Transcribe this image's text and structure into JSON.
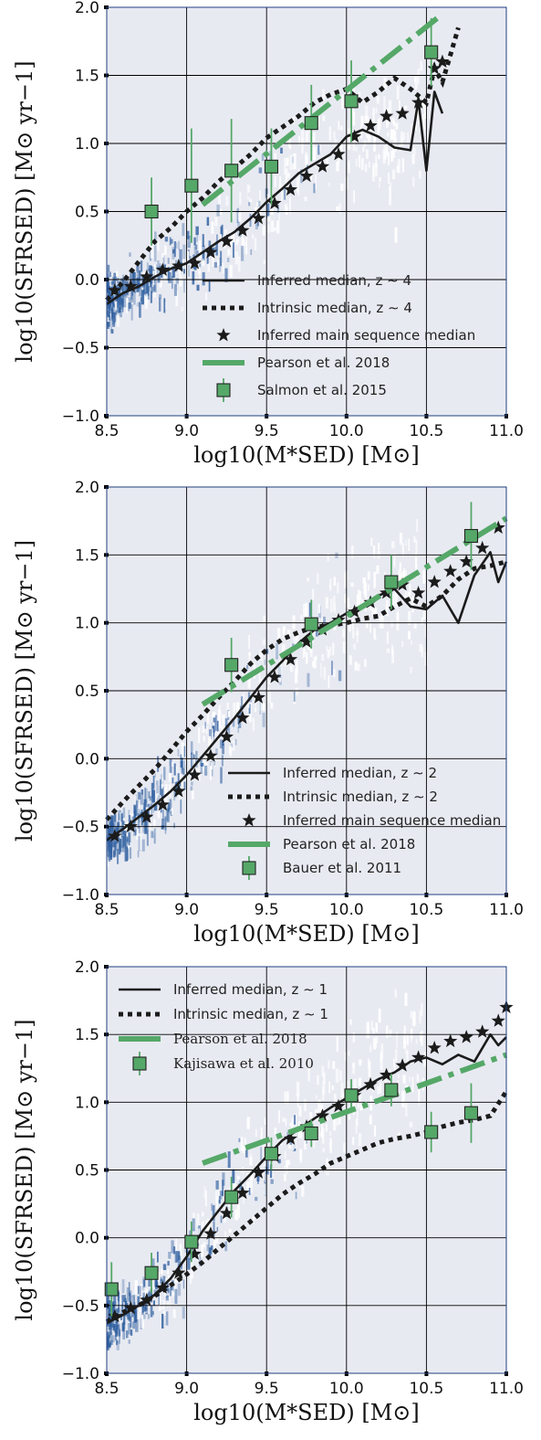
{
  "chart_data": [
    {
      "type": "line",
      "panel": "top",
      "xlabel": "log10(M*SED) [M⊙]",
      "ylabel": "log10(SFRSED) [M⊙ yr−1]",
      "xlim": [
        8.5,
        11.0
      ],
      "ylim": [
        -1.0,
        2.0
      ],
      "xticks": [
        "8.5",
        "9.0",
        "9.5",
        "10.0",
        "10.5",
        "11.0"
      ],
      "yticks": [
        "−1.0",
        "−0.5",
        "0.0",
        "0.5",
        "1.0",
        "1.5",
        "2.0"
      ],
      "grid": true,
      "legend_position": "lower-right",
      "legend": [
        {
          "label": "Inferred median, z ∼ 4",
          "style": "solid"
        },
        {
          "label": "Intrinsic median, z ∼ 4",
          "style": "dotted"
        },
        {
          "label": "Inferred main sequence median",
          "style": "star"
        },
        {
          "label": "Pearson et al. 2018",
          "style": "dashdot"
        },
        {
          "label": "Salmon et al. 2015",
          "style": "square"
        }
      ],
      "series": [
        {
          "name": "Inferred median, z ∼ 4",
          "x": [
            8.5,
            8.6,
            8.7,
            8.8,
            8.9,
            9.0,
            9.1,
            9.2,
            9.3,
            9.4,
            9.5,
            9.6,
            9.7,
            9.8,
            9.9,
            10.0,
            10.1,
            10.2,
            10.3,
            10.4,
            10.45,
            10.5,
            10.55,
            10.6
          ],
          "y": [
            -0.18,
            -0.1,
            -0.05,
            0.02,
            0.08,
            0.12,
            0.2,
            0.28,
            0.35,
            0.45,
            0.57,
            0.67,
            0.78,
            0.85,
            0.92,
            1.05,
            1.1,
            1.05,
            0.97,
            0.95,
            1.32,
            0.8,
            1.38,
            1.22
          ]
        },
        {
          "name": "Intrinsic median, z ∼ 4",
          "x": [
            8.5,
            8.6,
            8.7,
            8.8,
            8.9,
            9.0,
            9.1,
            9.2,
            9.3,
            9.4,
            9.5,
            9.6,
            9.7,
            9.8,
            9.9,
            10.0,
            10.1,
            10.2,
            10.3,
            10.4,
            10.5,
            10.55,
            10.6,
            10.65,
            10.7
          ],
          "y": [
            -0.15,
            -0.02,
            0.13,
            0.28,
            0.38,
            0.5,
            0.6,
            0.72,
            0.82,
            0.92,
            1.04,
            1.12,
            1.2,
            1.3,
            1.36,
            1.4,
            1.3,
            1.38,
            1.48,
            1.4,
            1.3,
            1.55,
            1.45,
            1.65,
            1.85
          ]
        },
        {
          "name": "Inferred main sequence median",
          "x": [
            8.55,
            8.65,
            8.75,
            8.85,
            8.95,
            9.05,
            9.15,
            9.25,
            9.35,
            9.45,
            9.55,
            9.65,
            9.75,
            9.85,
            9.95,
            10.05,
            10.15,
            10.25,
            10.35,
            10.45,
            10.55,
            10.6
          ],
          "y": [
            -0.08,
            -0.05,
            0.02,
            0.07,
            0.1,
            0.12,
            0.2,
            0.28,
            0.36,
            0.45,
            0.56,
            0.66,
            0.76,
            0.83,
            0.92,
            1.05,
            1.13,
            1.2,
            1.22,
            1.3,
            1.55,
            1.6
          ]
        },
        {
          "name": "Pearson et al. 2018",
          "x": [
            9.1,
            10.6
          ],
          "y": [
            0.55,
            1.95
          ]
        },
        {
          "name": "Salmon et al. 2015",
          "x": [
            8.78,
            9.03,
            9.28,
            9.53,
            9.78,
            10.03,
            10.53
          ],
          "y": [
            0.5,
            0.69,
            0.8,
            0.83,
            1.15,
            1.31,
            1.67
          ],
          "yerr": [
            0.25,
            0.42,
            0.38,
            0.28,
            0.28,
            0.3,
            0.25
          ]
        }
      ]
    },
    {
      "type": "line",
      "panel": "middle",
      "xlabel": "log10(M*SED) [M⊙]",
      "ylabel": "log10(SFRSED) [M⊙ yr−1]",
      "xlim": [
        8.5,
        11.0
      ],
      "ylim": [
        -1.0,
        2.0
      ],
      "xticks": [
        "8.5",
        "9.0",
        "9.5",
        "10.0",
        "10.5",
        "11.0"
      ],
      "yticks": [
        "−1.0",
        "−0.5",
        "0.0",
        "0.5",
        "1.0",
        "1.5",
        "2.0"
      ],
      "grid": true,
      "legend_position": "lower-right",
      "legend": [
        {
          "label": "Inferred median, z ∼ 2",
          "style": "solid"
        },
        {
          "label": "Intrinsic median, z ∼ 2",
          "style": "dotted"
        },
        {
          "label": "Inferred main sequence median",
          "style": "star"
        },
        {
          "label": "Pearson et al. 2018",
          "style": "dashdot"
        },
        {
          "label": "Bauer et al. 2011",
          "style": "square"
        }
      ],
      "series": [
        {
          "name": "Inferred median, z ∼ 2",
          "x": [
            8.5,
            8.6,
            8.7,
            8.8,
            8.9,
            9.0,
            9.1,
            9.2,
            9.3,
            9.4,
            9.5,
            9.6,
            9.7,
            9.8,
            9.9,
            10.0,
            10.1,
            10.2,
            10.3,
            10.4,
            10.5,
            10.6,
            10.7,
            10.8,
            10.9,
            10.95,
            11.0
          ],
          "y": [
            -0.6,
            -0.52,
            -0.43,
            -0.34,
            -0.24,
            -0.12,
            0.02,
            0.16,
            0.3,
            0.45,
            0.6,
            0.72,
            0.85,
            0.95,
            1.0,
            1.07,
            1.13,
            1.2,
            1.25,
            1.12,
            1.1,
            1.2,
            1.0,
            1.35,
            1.52,
            1.3,
            1.45
          ]
        },
        {
          "name": "Intrinsic median, z ∼ 2",
          "x": [
            8.5,
            8.6,
            8.7,
            8.8,
            8.9,
            9.0,
            9.1,
            9.2,
            9.3,
            9.4,
            9.5,
            9.6,
            9.7,
            9.8,
            9.9,
            10.0,
            10.1,
            10.2,
            10.3,
            10.4,
            10.5,
            10.6,
            10.7,
            10.8,
            10.9,
            11.0
          ],
          "y": [
            -0.45,
            -0.32,
            -0.2,
            -0.08,
            0.06,
            0.2,
            0.32,
            0.45,
            0.57,
            0.7,
            0.8,
            0.88,
            0.93,
            0.97,
            0.98,
            1.0,
            1.03,
            1.05,
            1.12,
            1.18,
            1.12,
            1.2,
            1.32,
            1.4,
            1.42,
            1.45
          ]
        },
        {
          "name": "Inferred main sequence median",
          "x": [
            8.55,
            8.65,
            8.75,
            8.85,
            8.95,
            9.05,
            9.15,
            9.25,
            9.35,
            9.45,
            9.55,
            9.65,
            9.75,
            9.85,
            9.95,
            10.05,
            10.15,
            10.25,
            10.35,
            10.45,
            10.55,
            10.65,
            10.75,
            10.85,
            10.95
          ],
          "y": [
            -0.57,
            -0.5,
            -0.43,
            -0.34,
            -0.24,
            -0.12,
            0.02,
            0.16,
            0.3,
            0.45,
            0.6,
            0.73,
            0.86,
            0.95,
            1.02,
            1.08,
            1.15,
            1.22,
            1.28,
            1.22,
            1.3,
            1.38,
            1.45,
            1.55,
            1.7
          ]
        },
        {
          "name": "Pearson et al. 2018",
          "x": [
            9.1,
            11.0
          ],
          "y": [
            0.4,
            1.77
          ]
        },
        {
          "name": "Bauer et al. 2011",
          "x": [
            9.28,
            9.78,
            10.28,
            10.78
          ],
          "y": [
            0.69,
            0.99,
            1.3,
            1.64
          ],
          "yerr": [
            0.2,
            0.18,
            0.2,
            0.25
          ]
        }
      ]
    },
    {
      "type": "line",
      "panel": "bottom",
      "xlabel": "log10(M*SED) [M⊙]",
      "ylabel": "log10(SFRSED) [M⊙ yr−1]",
      "xlim": [
        8.5,
        11.0
      ],
      "ylim": [
        -1.0,
        2.0
      ],
      "xticks": [
        "8.5",
        "9.0",
        "9.5",
        "10.0",
        "10.5",
        "11.0"
      ],
      "yticks": [
        "−1.0",
        "−0.5",
        "0.0",
        "0.5",
        "1.0",
        "1.5",
        "2.0"
      ],
      "grid": true,
      "legend_position": "upper-left",
      "legend": [
        {
          "label": "Inferred median, z ∼ 1",
          "style": "solid"
        },
        {
          "label": "Intrinsic median, z ∼ 1",
          "style": "dotted"
        },
        {
          "label": "Pearson et al. 2018",
          "style": "dashdot"
        },
        {
          "label": "Kajisawa et al. 2010",
          "style": "square"
        }
      ],
      "series": [
        {
          "name": "Inferred median, z ∼ 1",
          "x": [
            8.5,
            8.6,
            8.7,
            8.8,
            8.9,
            9.0,
            9.1,
            9.2,
            9.3,
            9.4,
            9.5,
            9.6,
            9.7,
            9.8,
            9.9,
            10.0,
            10.1,
            10.2,
            10.3,
            10.4,
            10.5,
            10.6,
            10.7,
            10.8,
            10.9,
            10.95,
            11.0
          ],
          "y": [
            -0.63,
            -0.57,
            -0.5,
            -0.42,
            -0.3,
            -0.14,
            0.05,
            0.2,
            0.35,
            0.47,
            0.6,
            0.72,
            0.8,
            0.88,
            0.96,
            1.03,
            1.1,
            1.17,
            1.22,
            1.3,
            1.33,
            1.28,
            1.35,
            1.3,
            1.5,
            1.42,
            1.48
          ]
        },
        {
          "name": "Intrinsic median, z ∼ 1",
          "x": [
            8.5,
            8.6,
            8.7,
            8.8,
            8.9,
            9.0,
            9.1,
            9.2,
            9.3,
            9.4,
            9.5,
            9.6,
            9.7,
            9.8,
            9.9,
            10.0,
            10.1,
            10.2,
            10.3,
            10.4,
            10.5,
            10.6,
            10.7,
            10.8,
            10.9,
            11.0
          ],
          "y": [
            -0.62,
            -0.55,
            -0.5,
            -0.43,
            -0.35,
            -0.27,
            -0.18,
            -0.08,
            0.02,
            0.12,
            0.22,
            0.32,
            0.4,
            0.47,
            0.55,
            0.6,
            0.65,
            0.7,
            0.73,
            0.75,
            0.78,
            0.82,
            0.85,
            0.87,
            0.9,
            1.08
          ]
        },
        {
          "name": "Inferred main sequence median",
          "x": [
            8.55,
            8.65,
            8.75,
            8.85,
            8.95,
            9.05,
            9.15,
            9.25,
            9.35,
            9.45,
            9.55,
            9.65,
            9.75,
            9.85,
            9.95,
            10.05,
            10.15,
            10.25,
            10.35,
            10.45,
            10.55,
            10.65,
            10.75,
            10.85,
            10.95,
            11.0
          ],
          "y": [
            -0.58,
            -0.52,
            -0.46,
            -0.37,
            -0.26,
            -0.12,
            0.03,
            0.18,
            0.33,
            0.48,
            0.6,
            0.73,
            0.82,
            0.9,
            0.97,
            1.05,
            1.13,
            1.2,
            1.27,
            1.33,
            1.4,
            1.45,
            1.48,
            1.52,
            1.6,
            1.7
          ]
        },
        {
          "name": "Pearson et al. 2018",
          "x": [
            9.1,
            11.0
          ],
          "y": [
            0.55,
            1.35
          ]
        },
        {
          "name": "Kajisawa et al. 2010",
          "x": [
            8.53,
            8.78,
            9.03,
            9.28,
            9.53,
            9.78,
            10.03,
            10.28,
            10.53,
            10.78
          ],
          "y": [
            -0.38,
            -0.26,
            -0.03,
            0.3,
            0.62,
            0.77,
            1.05,
            1.09,
            0.78,
            0.92
          ],
          "yerr": [
            0.2,
            0.15,
            0.15,
            0.15,
            0.12,
            0.1,
            0.12,
            0.12,
            0.15,
            0.22
          ]
        }
      ]
    }
  ],
  "colors": {
    "pearson": "#55a868",
    "marker_fill": "#55a868",
    "errorbar": "#55a868",
    "line": "#1b1b1b",
    "plot_bg": "#e8eaf2",
    "density": "#2f5f9f"
  }
}
